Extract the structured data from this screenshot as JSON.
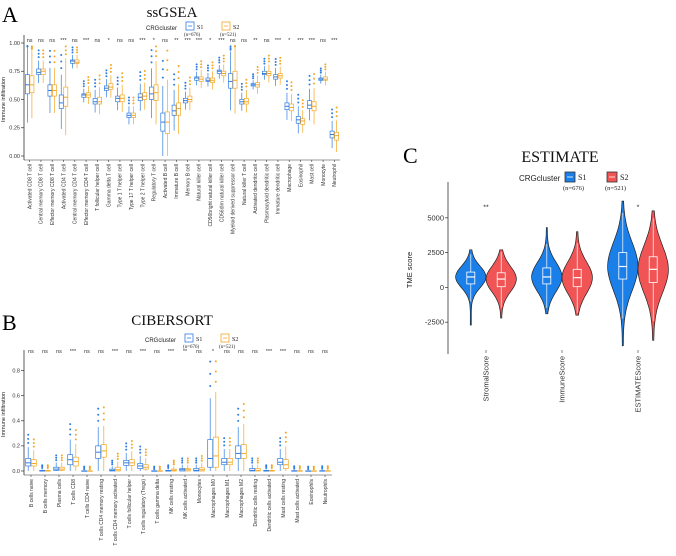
{
  "colors": {
    "S1": "#2f7de1",
    "S2": "#f5a623",
    "S1_fill": "#1a7fe8",
    "S2_fill": "#f05454",
    "axis": "#333333"
  },
  "chart_data": [
    {
      "panel": "A",
      "type": "box",
      "title": "ssGSEA",
      "ylabel": "Immune infiltration",
      "ylim": [
        0,
        1.0
      ],
      "yticks": [
        "0.00",
        "0.25",
        "0.50",
        "0.75",
        "1.00"
      ],
      "ytick_values": [
        0,
        0.25,
        0.5,
        0.75,
        1.0
      ],
      "legend": {
        "title": "CRGcluster",
        "entries": [
          {
            "name": "S1",
            "n": "(n=676)"
          },
          {
            "name": "S2",
            "n": "(n=521)"
          }
        ]
      },
      "categories": [
        "Activated CD8 T cell",
        "Central memory CD8 T cell",
        "Effector memory CD8 T cell",
        "Activated CD4 T cell",
        "Central memory CD4 T cell",
        "Effector memory CD4 T cell",
        "T follicular helper cell",
        "Gamma delta T cell",
        "Type 1 T helper cell",
        "Type 17 T helper cell",
        "Type 2 T helper cell",
        "Regulatory T cell",
        "Activated B cell",
        "Immature  B cell",
        "Memory B cell",
        "Natural killer cell",
        "CD56bright natural killer cell",
        "CD56dim natural killer cell",
        "Myeloid derived suppressor cell",
        "Natural killer T cell",
        "Activated dendritic cell",
        "Plasmacytoid dendritic cell",
        "Immature dendritic cell",
        "Macrophage",
        "Eosinophil",
        "Mast cell",
        "Monocyte",
        "Neutrophil"
      ],
      "significance": [
        "ns",
        "ns",
        "ns",
        "***",
        "ns",
        "***",
        "ns",
        "*",
        "ns",
        "ns",
        "***",
        "*",
        "ns",
        "**",
        "***",
        "***",
        "*",
        "***",
        "ns",
        "ns",
        "**",
        "ns",
        "***",
        "*",
        "***",
        "***",
        "ns",
        "***"
      ],
      "series": [
        {
          "name": "S1",
          "median": [
            0.63,
            0.74,
            0.58,
            0.47,
            0.84,
            0.54,
            0.48,
            0.6,
            0.51,
            0.36,
            0.52,
            0.55,
            0.3,
            0.4,
            0.49,
            0.69,
            0.67,
            0.75,
            0.66,
            0.48,
            0.63,
            0.73,
            0.7,
            0.44,
            0.32,
            0.45,
            0.68,
            0.19
          ],
          "q1": [
            0.55,
            0.72,
            0.53,
            0.42,
            0.82,
            0.52,
            0.46,
            0.58,
            0.48,
            0.34,
            0.49,
            0.5,
            0.22,
            0.36,
            0.47,
            0.67,
            0.66,
            0.73,
            0.6,
            0.46,
            0.62,
            0.72,
            0.68,
            0.41,
            0.29,
            0.42,
            0.67,
            0.16
          ],
          "q3": [
            0.72,
            0.77,
            0.63,
            0.54,
            0.85,
            0.55,
            0.51,
            0.62,
            0.53,
            0.38,
            0.55,
            0.61,
            0.38,
            0.45,
            0.51,
            0.7,
            0.69,
            0.76,
            0.73,
            0.5,
            0.64,
            0.75,
            0.72,
            0.47,
            0.35,
            0.49,
            0.69,
            0.22
          ]
        },
        {
          "name": "S2",
          "median": [
            0.63,
            0.75,
            0.58,
            0.52,
            0.83,
            0.54,
            0.48,
            0.61,
            0.51,
            0.36,
            0.53,
            0.56,
            0.3,
            0.42,
            0.5,
            0.68,
            0.67,
            0.73,
            0.67,
            0.48,
            0.63,
            0.73,
            0.71,
            0.43,
            0.31,
            0.44,
            0.68,
            0.18
          ],
          "q1": [
            0.56,
            0.72,
            0.53,
            0.44,
            0.82,
            0.52,
            0.46,
            0.59,
            0.48,
            0.34,
            0.5,
            0.49,
            0.2,
            0.36,
            0.48,
            0.66,
            0.65,
            0.71,
            0.6,
            0.46,
            0.61,
            0.71,
            0.69,
            0.4,
            0.28,
            0.4,
            0.67,
            0.14
          ],
          "q3": [
            0.71,
            0.77,
            0.63,
            0.61,
            0.85,
            0.56,
            0.52,
            0.64,
            0.54,
            0.38,
            0.56,
            0.63,
            0.39,
            0.47,
            0.53,
            0.7,
            0.69,
            0.75,
            0.75,
            0.51,
            0.65,
            0.75,
            0.73,
            0.46,
            0.33,
            0.48,
            0.7,
            0.21
          ]
        }
      ]
    },
    {
      "panel": "B",
      "type": "box",
      "title": "CIBERSORT",
      "ylabel": "Immune infiltration",
      "ylim": [
        0,
        0.9
      ],
      "yticks": [
        "0.0",
        "0.2",
        "0.4",
        "0.6",
        "0.8"
      ],
      "ytick_values": [
        0,
        0.2,
        0.4,
        0.6,
        0.8
      ],
      "legend": {
        "title": "CRGcluster",
        "entries": [
          {
            "name": "S1",
            "n": "(n=676)"
          },
          {
            "name": "S2",
            "n": "(n=521)"
          }
        ]
      },
      "categories": [
        "B cells naive",
        "B cells memory",
        "Plasma cells",
        "T cells CD8",
        "T cells CD4 naive",
        "T cells CD4 memory resting",
        "T cells CD4 memory activated",
        "T cells follicular helper",
        "T cells regulatory (Tregs)",
        "T cells gamma delta",
        "NK cells resting",
        "NK cells activated",
        "Monocytes",
        "Macrophages M0",
        "Macrophages M1",
        "Macrophages M2",
        "Dendritic cells resting",
        "Dendritic cells activated",
        "Mast cells resting",
        "Mast cells activated",
        "Eosinophils",
        "Neutrophils"
      ],
      "significance": [
        "ns",
        "ns",
        "ns",
        "***",
        "ns",
        "ns",
        "***",
        "ns",
        "***",
        "ns",
        "***",
        "**",
        "ns",
        "*",
        "ns",
        "ns",
        "ns",
        "***",
        "***",
        "ns",
        "ns",
        "ns"
      ],
      "series": [
        {
          "name": "S1",
          "median": [
            0.065,
            0,
            0.015,
            0.09,
            0,
            0.15,
            0.005,
            0.065,
            0.04,
            0,
            0,
            0.01,
            0.005,
            0.1,
            0.07,
            0.14,
            0.005,
            0,
            0.07,
            0,
            0,
            0
          ],
          "q1": [
            0.04,
            0,
            0.005,
            0.05,
            0,
            0.1,
            0,
            0.045,
            0.02,
            0,
            0,
            0,
            0,
            0.03,
            0.05,
            0.1,
            0,
            0,
            0.05,
            0,
            0,
            0
          ],
          "q3": [
            0.1,
            0.005,
            0.03,
            0.13,
            0.002,
            0.2,
            0.015,
            0.085,
            0.06,
            0.002,
            0.005,
            0.02,
            0.02,
            0.25,
            0.1,
            0.2,
            0.02,
            0.005,
            0.1,
            0.003,
            0.002,
            0.003
          ]
        },
        {
          "name": "S2",
          "median": [
            0.06,
            0,
            0.015,
            0.075,
            0,
            0.16,
            0.01,
            0.065,
            0.03,
            0,
            0.005,
            0.01,
            0.01,
            0.12,
            0.07,
            0.14,
            0.005,
            0,
            0.05,
            0,
            0,
            0
          ],
          "q1": [
            0.04,
            0,
            0.005,
            0.04,
            0,
            0.11,
            0,
            0.045,
            0.015,
            0,
            0,
            0,
            0,
            0.03,
            0.05,
            0.1,
            0,
            0,
            0.02,
            0,
            0,
            0
          ],
          "q3": [
            0.09,
            0.005,
            0.03,
            0.11,
            0.002,
            0.21,
            0.03,
            0.09,
            0.05,
            0.002,
            0.015,
            0.02,
            0.025,
            0.27,
            0.1,
            0.21,
            0.02,
            0.005,
            0.09,
            0.003,
            0.002,
            0.003
          ]
        }
      ]
    },
    {
      "panel": "C",
      "type": "violin",
      "title": "ESTIMATE",
      "ylabel": "TME score",
      "ylim": [
        -4500,
        7000
      ],
      "yticks": [
        "-2500",
        "0",
        "2500",
        "5000"
      ],
      "ytick_values": [
        -2500,
        0,
        2500,
        5000
      ],
      "legend": {
        "title": "CRGcluster",
        "entries": [
          {
            "name": "S1",
            "n": "(n=676)"
          },
          {
            "name": "S2",
            "n": "(n=521)"
          }
        ]
      },
      "categories": [
        "StromalScore",
        "ImmuneScore",
        "ESTIMATEScore"
      ],
      "significance": [
        "**",
        "",
        "*"
      ],
      "series": [
        {
          "name": "S1",
          "median": [
            750,
            750,
            1500
          ],
          "q1": [
            250,
            250,
            600
          ],
          "q3": [
            1100,
            1400,
            2500
          ],
          "min": [
            -2700,
            -1900,
            -4200
          ],
          "max": [
            2700,
            4300,
            6200
          ]
        },
        {
          "name": "S2",
          "median": [
            600,
            700,
            1300
          ],
          "q1": [
            50,
            50,
            350
          ],
          "q3": [
            1050,
            1300,
            2200
          ],
          "min": [
            -2200,
            -2000,
            -3800
          ],
          "max": [
            2700,
            4000,
            5500
          ]
        }
      ]
    }
  ]
}
